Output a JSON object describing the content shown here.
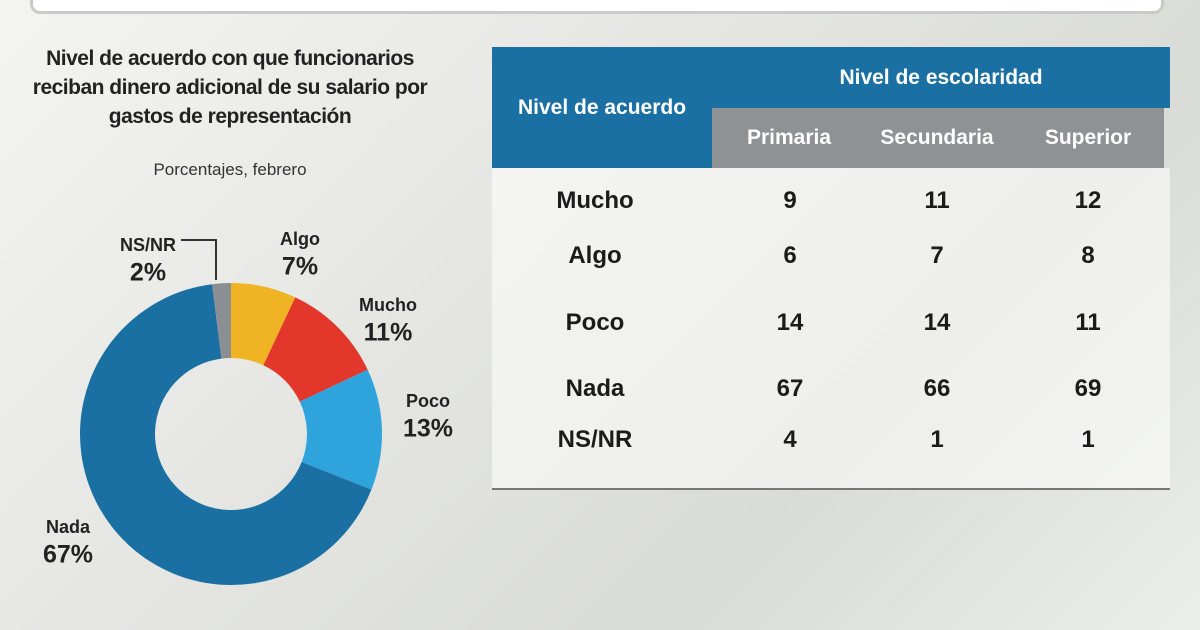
{
  "chart_data": {
    "type": "pie",
    "donut": true,
    "title": "Nivel de acuerdo con que funcionarios reciban dinero adicional de su salario por gastos de representación",
    "subtitle": "Porcentajes, febrero",
    "categories": [
      "Algo",
      "Mucho",
      "Poco",
      "Nada",
      "NS/NR"
    ],
    "values": [
      7,
      11,
      13,
      67,
      2
    ],
    "value_labels": [
      "7%",
      "11%",
      "13%",
      "67%",
      "2%"
    ],
    "colors": [
      "#f0b323",
      "#e2372a",
      "#2ea3dc",
      "#1a6fa3",
      "#8a8f94"
    ]
  },
  "table": {
    "header": "Nivel de acuerdo",
    "group_header": "Nivel de escolaridad",
    "columns": [
      "Primaria",
      "Secundaria",
      "Superior"
    ],
    "rows": [
      {
        "label": "Mucho",
        "values": [
          9,
          11,
          12
        ]
      },
      {
        "label": "Algo",
        "values": [
          6,
          7,
          8
        ]
      },
      {
        "label": "Poco",
        "values": [
          14,
          14,
          11
        ]
      },
      {
        "label": "Nada",
        "values": [
          67,
          66,
          69
        ]
      },
      {
        "label": "NS/NR",
        "values": [
          4,
          1,
          1
        ]
      }
    ]
  }
}
